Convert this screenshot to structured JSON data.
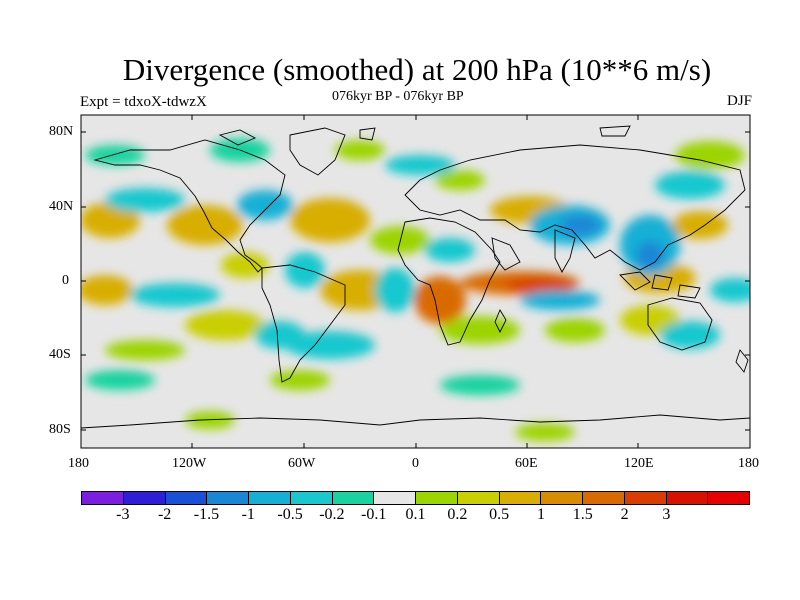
{
  "title": "Divergence (smoothed) at 200 hPa (10**6 m/s)",
  "subtitle_left": "Expt = tdxoX-tdwzX",
  "subtitle_center": "076kyr BP - 076kyr BP",
  "subtitle_right": "DJF",
  "lat_ticks": [
    "80N",
    "40N",
    "0",
    "40S",
    "80S"
  ],
  "lon_ticks": [
    "180",
    "120W",
    "60W",
    "0",
    "60E",
    "120E",
    "180"
  ],
  "colorbar": {
    "colors": [
      "#7b1ee0",
      "#2e1fd6",
      "#1a50d6",
      "#1a86d6",
      "#16b0d6",
      "#19c8cf",
      "#18d39f",
      "#e6e6e6",
      "#9cd400",
      "#c9cf00",
      "#d8ae00",
      "#d88d00",
      "#d96a00",
      "#d93e00",
      "#d91100",
      "#e60000"
    ],
    "labels": [
      "-3",
      "-2",
      "-1.5",
      "-1",
      "-0.5",
      "-0.2",
      "-0.1",
      "0.1",
      "0.2",
      "0.5",
      "1",
      "1.5",
      "2",
      "3"
    ]
  }
}
